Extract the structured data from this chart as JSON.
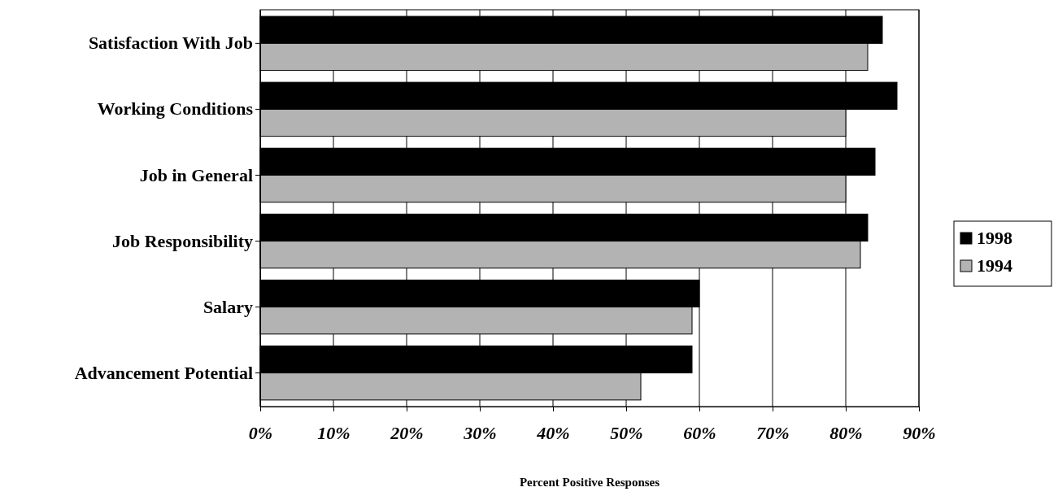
{
  "chart_data": {
    "type": "bar",
    "orientation": "horizontal",
    "xlabel": "Percent Positive Responses",
    "categories": [
      "Satisfaction With Job",
      "Working Conditions",
      "Job in General",
      "Job Responsibility",
      "Salary",
      "Advancement Potential"
    ],
    "series": [
      {
        "name": "1998",
        "color": "#000000",
        "values": [
          85,
          87,
          84,
          83,
          60,
          59
        ]
      },
      {
        "name": "1994",
        "color": "#b3b3b3",
        "values": [
          83,
          80,
          80,
          82,
          59,
          52
        ]
      }
    ],
    "xlim": [
      0,
      90
    ],
    "xticks": [
      {
        "value": 0,
        "label": "0%"
      },
      {
        "value": 10,
        "label": "10%"
      },
      {
        "value": 20,
        "label": "20%"
      },
      {
        "value": 30,
        "label": "30%"
      },
      {
        "value": 40,
        "label": "40%"
      },
      {
        "value": 50,
        "label": "50%"
      },
      {
        "value": 60,
        "label": "60%"
      },
      {
        "value": 70,
        "label": "70%"
      },
      {
        "value": 80,
        "label": "80%"
      },
      {
        "value": 90,
        "label": "90%"
      }
    ],
    "grid": "x",
    "legend": "right"
  }
}
